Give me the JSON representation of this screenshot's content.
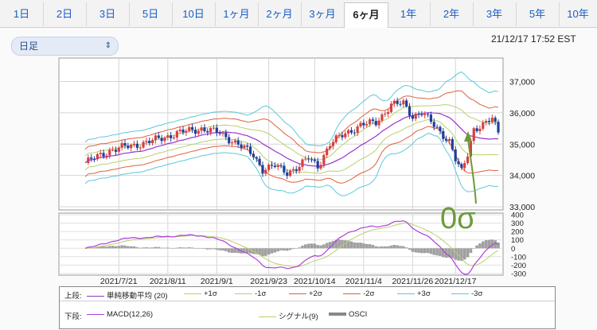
{
  "tabs": [
    {
      "label": "1日",
      "active": false
    },
    {
      "label": "2日",
      "active": false
    },
    {
      "label": "3日",
      "active": false
    },
    {
      "label": "5日",
      "active": false
    },
    {
      "label": "10日",
      "active": false
    },
    {
      "label": "1ヶ月",
      "active": false
    },
    {
      "label": "2ヶ月",
      "active": false
    },
    {
      "label": "3ヶ月",
      "active": false
    },
    {
      "label": "6ヶ月",
      "active": true
    },
    {
      "label": "1年",
      "active": false
    },
    {
      "label": "2年",
      "active": false
    },
    {
      "label": "3年",
      "active": false
    },
    {
      "label": "5年",
      "active": false
    },
    {
      "label": "10年",
      "active": false
    }
  ],
  "period_select": {
    "value": "日足"
  },
  "timestamp": "21/12/17 17:52 EST",
  "annotation": {
    "text": "0σ",
    "color": "#6d9a3a"
  },
  "colors": {
    "up": "#d64040",
    "down": "#1f3f9a",
    "sma": "#9933cc",
    "s1": "#b8d06a",
    "s2": "#e0603a",
    "s3": "#5cc8d8",
    "macd": "#b040d8",
    "signal": "#b8d06a",
    "osci": "#a0a0a0"
  },
  "chart_data": [
    {
      "type": "candlestick",
      "title": "上段",
      "x_ticks": [
        "2021/7/21",
        "2021/8/11",
        "2021/9/1",
        "2021/9/23",
        "2021/10/14",
        "2021/11/4",
        "2021/11/26",
        "2021/12/17"
      ],
      "y_ticks": [
        "37,000",
        "36,000",
        "35,000",
        "34,000",
        "33,000"
      ],
      "ylim": [
        32900,
        37750
      ],
      "grid": true,
      "close_anchors": [
        [
          0,
          34400
        ],
        [
          8,
          34800
        ],
        [
          15,
          34950
        ],
        [
          22,
          35100
        ],
        [
          30,
          35350
        ],
        [
          38,
          35500
        ],
        [
          44,
          35350
        ],
        [
          50,
          35000
        ],
        [
          55,
          34650
        ],
        [
          58,
          34200
        ],
        [
          62,
          34300
        ],
        [
          66,
          34100
        ],
        [
          70,
          34300
        ],
        [
          73,
          34550
        ],
        [
          76,
          34300
        ],
        [
          80,
          35000
        ],
        [
          85,
          35350
        ],
        [
          90,
          35600
        ],
        [
          95,
          35700
        ],
        [
          100,
          36250
        ],
        [
          104,
          36300
        ],
        [
          107,
          35900
        ],
        [
          110,
          36000
        ],
        [
          113,
          35700
        ],
        [
          116,
          35400
        ],
        [
          119,
          35100
        ],
        [
          121,
          34500
        ],
        [
          123,
          34100
        ],
        [
          125,
          34700
        ],
        [
          127,
          35500
        ],
        [
          130,
          35600
        ],
        [
          133,
          35800
        ],
        [
          135,
          35400
        ]
      ],
      "bands": {
        "sma": "単純移動平均 (20)",
        "sigma": [
          "+1σ",
          "-1σ",
          "+2σ",
          "-2σ",
          "+3σ",
          "-3σ"
        ]
      },
      "legend": [
        "単純移動平均 (20)",
        "+1σ",
        "-1σ",
        "+2σ",
        "-2σ",
        "+3σ",
        "-3σ"
      ]
    },
    {
      "type": "macd",
      "title": "下段",
      "y_ticks": [
        "400",
        "300",
        "200",
        "100",
        "0",
        "-100",
        "-200",
        "-300"
      ],
      "ylim": [
        -320,
        420
      ],
      "legend": [
        "MACD(12,26)",
        "シグナル(9)",
        "OSCI"
      ],
      "grid": true
    }
  ],
  "legend": {
    "upper_label": "上段:",
    "lower_label": "下段:",
    "upper_items": [
      "単純移動平均 (20)",
      "+1σ",
      "-1σ",
      "+2σ",
      "-2σ",
      "+3σ",
      "-3σ"
    ],
    "lower_items": [
      "MACD(12,26)",
      "シグナル(9)",
      "OSCI"
    ]
  }
}
